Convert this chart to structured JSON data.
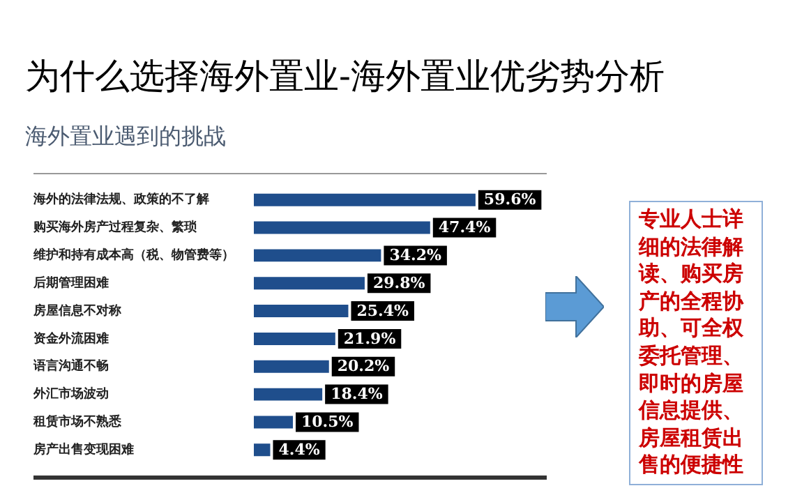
{
  "chart_data": {
    "type": "bar",
    "orientation": "horizontal",
    "title": "为什么选择海外置业-海外置业优劣势分析",
    "subtitle": "海外置业遇到的挑战",
    "categories": [
      "海外的法律法规、政策的不了解",
      "购买海外房产过程复杂、繁琐",
      "维护和持有成本高（税、物管费等）",
      "后期管理困难",
      "房屋信息不对称",
      "资金外流困难",
      "语言沟通不畅",
      "外汇市场波动",
      "租赁市场不熟悉",
      "房产出售变现困难"
    ],
    "values": [
      59.6,
      47.4,
      34.2,
      29.8,
      25.4,
      21.9,
      20.2,
      18.4,
      10.5,
      4.4
    ],
    "value_labels": [
      "59.6%",
      "47.4%",
      "34.2%",
      "29.8%",
      "25.4%",
      "21.9%",
      "20.2%",
      "18.4%",
      "10.5%",
      "4.4%"
    ],
    "color": "#1f4e8c",
    "tick_labels": "y",
    "grid": false,
    "legend": false,
    "annotations": [
      "专业人士详细的法律解读、购买房产的全程协助、可全权委托管理、即时的房屋信息提供、房屋租赁出售的便捷性"
    ]
  }
}
